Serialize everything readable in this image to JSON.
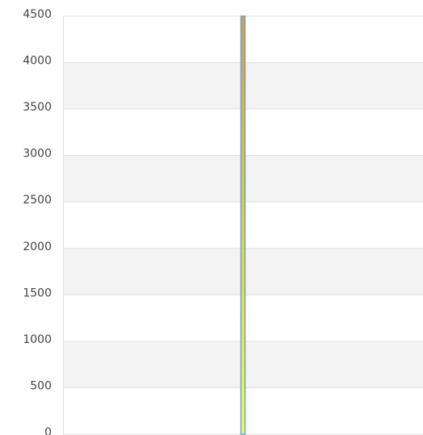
{
  "chart_data": {
    "type": "bar",
    "categories": [
      null
    ],
    "values": [
      4500
    ],
    "gradient": [
      "#e89a30",
      "#ffff3a"
    ],
    "stroke": "#5aa6dc",
    "ylim": [
      0,
      4500
    ],
    "yticks": [
      0,
      500,
      1000,
      1500,
      2000,
      2500,
      3000,
      3500,
      4000,
      4500
    ],
    "grid": true,
    "bands": true
  }
}
